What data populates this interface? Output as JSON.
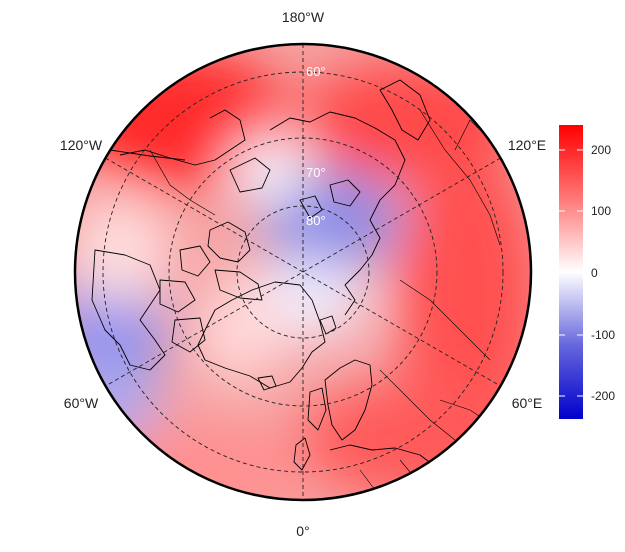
{
  "map": {
    "projection": "north-polar-stereographic",
    "longitude_labels": [
      "180°W",
      "120°W",
      "120°E",
      "60°W",
      "60°E",
      "0°"
    ],
    "latitude_labels": [
      "60°",
      "70°",
      "80°"
    ],
    "gridlines": "dashed",
    "colorbar": {
      "colors": {
        "low": "#0000cc",
        "mid": "#ffffff",
        "high": "#ff0000"
      },
      "ticks": [
        "200",
        "100",
        "0",
        "-100",
        "-200"
      ]
    }
  }
}
